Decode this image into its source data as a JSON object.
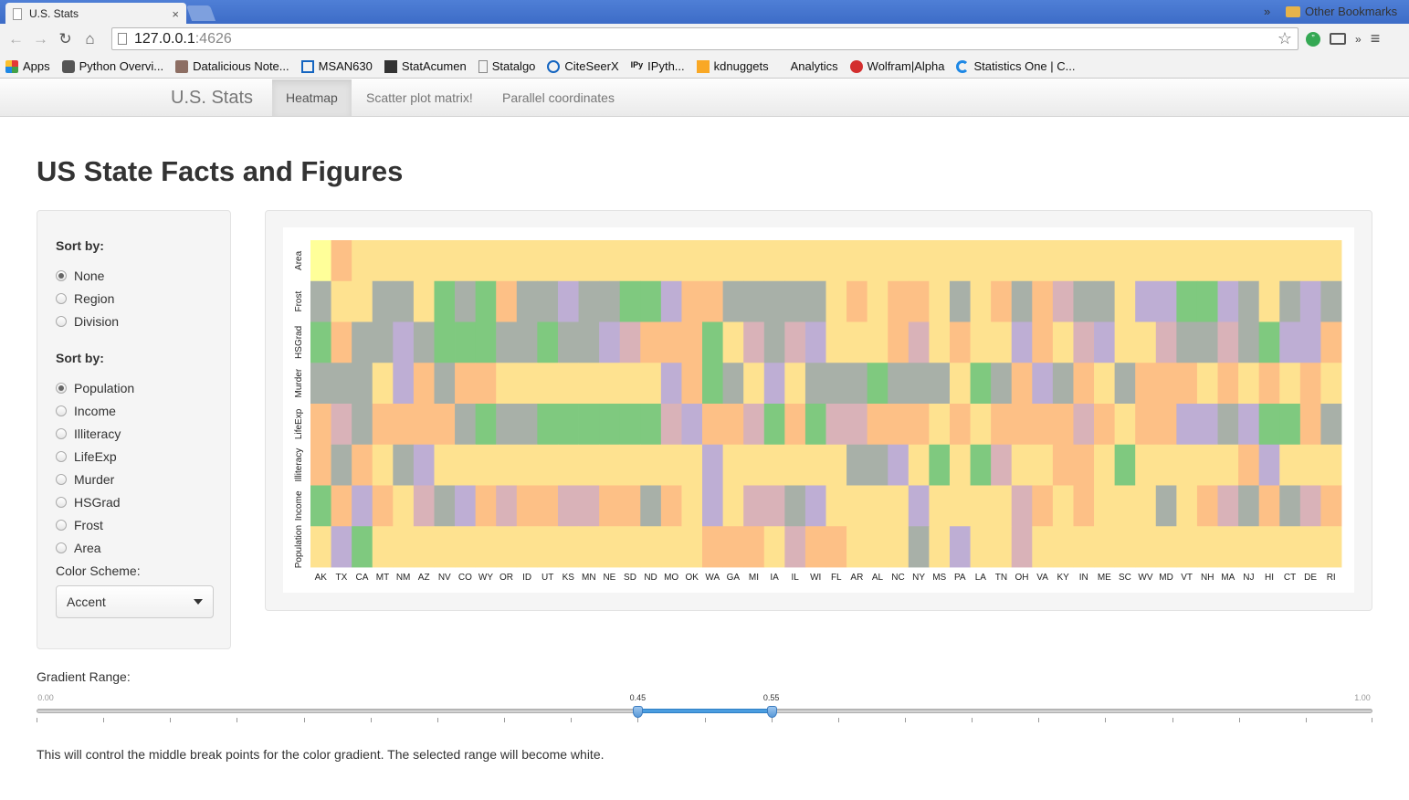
{
  "browser": {
    "tab_title": "U.S. Stats",
    "tab_close": "×",
    "url_host": "127.0.0.1",
    "url_port": ":4626",
    "bookmarks": [
      {
        "label": "Apps",
        "icon": "apps-icon"
      },
      {
        "label": "Python Overvi...",
        "icon": "python-icon"
      },
      {
        "label": "Datalicious Note...",
        "icon": "datalicious-icon"
      },
      {
        "label": "MSAN630",
        "icon": "msan-icon"
      },
      {
        "label": "StatAcumen",
        "icon": "statacumen-icon"
      },
      {
        "label": "Statalgo",
        "icon": "page-icon"
      },
      {
        "label": "CiteSeerX",
        "icon": "citeseerx-icon"
      },
      {
        "label": "IPyth...",
        "icon": "ipython-icon"
      },
      {
        "label": "kdnuggets",
        "icon": "kdnuggets-icon"
      },
      {
        "label": "Analytics",
        "icon": "blank-icon"
      },
      {
        "label": "Wolfram|Alpha",
        "icon": "wolfram-icon"
      },
      {
        "label": "Statistics One | C...",
        "icon": "statisticsone-icon"
      }
    ],
    "bookmarks_more": "»",
    "other_bookmarks": "Other Bookmarks"
  },
  "navbar": {
    "brand": "U.S. Stats",
    "tabs": [
      "Heatmap",
      "Scatter plot matrix!",
      "Parallel coordinates"
    ],
    "active_tab": "Heatmap"
  },
  "page": {
    "title": "US State Facts and Figures"
  },
  "sidebar": {
    "sort1": {
      "label": "Sort by:",
      "options": [
        "None",
        "Region",
        "Division"
      ],
      "selected": "None"
    },
    "sort2": {
      "label": "Sort by:",
      "options": [
        "Population",
        "Income",
        "Illiteracy",
        "LifeExp",
        "Murder",
        "HSGrad",
        "Frost",
        "Area"
      ],
      "selected": "Population"
    },
    "color_scheme": {
      "label": "Color Scheme:",
      "value": "Accent"
    }
  },
  "slider": {
    "label": "Gradient Range:",
    "min": 0.0,
    "max": 1.0,
    "low": 0.45,
    "high": 0.55,
    "min_label": "0.00",
    "max_label": "1.00",
    "low_label": "0.45",
    "high_label": "0.55",
    "help": "This will control the middle break points for the color gradient. The selected range will become white."
  },
  "chart_data": {
    "type": "heatmap",
    "x": [
      "AK",
      "TX",
      "CA",
      "MT",
      "NM",
      "AZ",
      "NV",
      "CO",
      "WY",
      "OR",
      "ID",
      "UT",
      "KS",
      "MN",
      "NE",
      "SD",
      "ND",
      "MO",
      "OK",
      "WA",
      "GA",
      "MI",
      "IA",
      "IL",
      "WI",
      "FL",
      "AR",
      "AL",
      "NC",
      "NY",
      "MS",
      "PA",
      "LA",
      "TN",
      "OH",
      "VA",
      "KY",
      "IN",
      "ME",
      "SC",
      "WV",
      "MD",
      "VT",
      "NH",
      "MA",
      "NJ",
      "HI",
      "CT",
      "DE",
      "RI"
    ],
    "y": [
      "Area",
      "Frost",
      "HSGrad",
      "Murder",
      "LifeExp",
      "Illiteracy",
      "Income",
      "Population"
    ],
    "scale_colors": [
      "#7fc97f",
      "#a8b0a8",
      "#beaed4",
      "#d9b2b8",
      "#fdc086",
      "#fee290",
      "#ffff99"
    ],
    "values": [
      [
        6,
        4,
        5,
        5,
        5,
        5,
        5,
        5,
        5,
        5,
        5,
        5,
        5,
        5,
        5,
        5,
        5,
        5,
        5,
        5,
        5,
        5,
        5,
        5,
        5,
        5,
        5,
        5,
        5,
        5,
        5,
        5,
        5,
        5,
        5,
        5,
        5,
        5,
        5,
        5,
        5,
        5,
        5,
        5,
        5,
        5,
        5,
        5,
        5,
        5
      ],
      [
        1,
        5,
        5,
        1,
        1,
        5,
        0,
        1,
        0,
        4,
        1,
        1,
        2,
        1,
        1,
        0,
        0,
        2,
        4,
        4,
        1,
        1,
        1,
        1,
        1,
        5,
        4,
        5,
        4,
        4,
        5,
        1,
        5,
        4,
        1,
        4,
        3,
        1,
        1,
        5,
        2,
        2,
        0,
        0,
        2,
        1,
        5,
        1,
        2,
        1
      ],
      [
        0,
        4,
        1,
        1,
        2,
        1,
        0,
        0,
        0,
        1,
        1,
        0,
        1,
        1,
        2,
        3,
        4,
        4,
        4,
        0,
        5,
        3,
        1,
        3,
        2,
        5,
        5,
        5,
        4,
        3,
        5,
        4,
        5,
        5,
        2,
        4,
        5,
        3,
        2,
        5,
        5,
        3,
        1,
        1,
        3,
        1,
        0,
        2,
        2,
        4
      ],
      [
        1,
        1,
        1,
        5,
        2,
        4,
        1,
        4,
        4,
        5,
        5,
        5,
        5,
        5,
        5,
        5,
        5,
        2,
        4,
        0,
        1,
        5,
        2,
        5,
        1,
        1,
        1,
        0,
        1,
        1,
        1,
        5,
        0,
        1,
        4,
        2,
        1,
        4,
        5,
        1,
        4,
        4,
        4,
        5,
        4,
        5,
        4,
        5,
        4,
        5
      ],
      [
        4,
        3,
        1,
        4,
        4,
        4,
        4,
        1,
        0,
        1,
        1,
        0,
        0,
        0,
        0,
        0,
        0,
        3,
        2,
        4,
        4,
        3,
        0,
        4,
        0,
        3,
        3,
        4,
        4,
        4,
        5,
        4,
        5,
        4,
        4,
        4,
        4,
        3,
        4,
        5,
        4,
        4,
        2,
        2,
        1,
        2,
        0,
        0,
        4,
        1
      ],
      [
        4,
        1,
        4,
        5,
        1,
        2,
        5,
        5,
        5,
        5,
        5,
        5,
        5,
        5,
        5,
        5,
        5,
        5,
        5,
        2,
        5,
        5,
        5,
        5,
        5,
        5,
        1,
        1,
        2,
        5,
        0,
        5,
        0,
        3,
        5,
        5,
        4,
        4,
        5,
        0,
        5,
        5,
        5,
        5,
        5,
        4,
        2,
        5,
        5,
        5
      ],
      [
        0,
        4,
        2,
        4,
        5,
        3,
        1,
        2,
        4,
        3,
        4,
        4,
        3,
        3,
        4,
        4,
        1,
        4,
        5,
        2,
        5,
        3,
        3,
        1,
        2,
        5,
        5,
        5,
        5,
        2,
        5,
        5,
        5,
        5,
        3,
        4,
        5,
        4,
        5,
        5,
        5,
        1,
        5,
        4,
        3,
        1,
        4,
        1,
        3,
        4
      ],
      [
        5,
        2,
        0,
        5,
        5,
        5,
        5,
        5,
        5,
        5,
        5,
        5,
        5,
        5,
        5,
        5,
        5,
        5,
        5,
        4,
        4,
        4,
        5,
        3,
        4,
        4,
        5,
        5,
        5,
        1,
        5,
        2,
        5,
        5,
        3,
        5,
        5,
        5,
        5,
        5,
        5,
        5,
        5,
        5,
        5,
        5,
        5,
        5,
        5,
        5
      ]
    ]
  }
}
